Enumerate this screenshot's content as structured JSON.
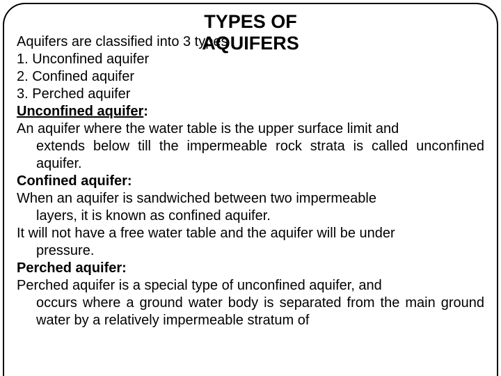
{
  "colors": {
    "text": "#000000",
    "background": "#ffffff",
    "border": "#000000"
  },
  "typography": {
    "font_family": "Arial",
    "title_fontsize_pt": 20,
    "body_fontsize_pt": 15
  },
  "title": {
    "line1": "TYPES OF",
    "line2": "AQUIFERS"
  },
  "intro": "Aquifers are classified into 3 types",
  "list": [
    "1. Unconfined aquifer",
    "2. Confined aquifer",
    "3. Perched aquifer"
  ],
  "sections": {
    "unconfined": {
      "heading": "Unconfined aquifer",
      "colon": ":",
      "para_first": "An aquifer where the water table is the upper surface limit and",
      "para_rest": "extends below till the impermeable rock strata is called unconfined aquifer."
    },
    "confined": {
      "heading": "Confined aquifer:",
      "para1_first": "When an aquifer is sandwiched between two impermeable",
      "para1_rest": "layers, it is known as confined aquifer.",
      "para2_first": "It will not have a free water table and the aquifer will be under",
      "para2_rest": "pressure."
    },
    "perched": {
      "heading": "Perched aquifer:",
      "para_first": "Perched aquifer is a special type of unconfined aquifer, and",
      "para_rest": "occurs where a ground water body is separated from the main ground water by a relatively impermeable stratum of"
    }
  }
}
